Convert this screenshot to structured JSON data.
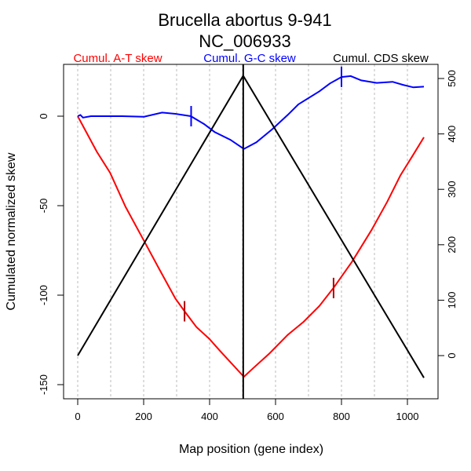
{
  "chart_data": {
    "type": "line",
    "title": "Brucella abortus 9-941",
    "subtitle": "NC_006933",
    "xlabel": "Map position (gene index)",
    "ylabel": "Cumulated normalized skew",
    "xlim": [
      0,
      1050
    ],
    "ylim": [
      -150,
      25
    ],
    "y2lim": [
      -40,
      505
    ],
    "x_ticks": [
      0,
      200,
      400,
      600,
      800,
      1000
    ],
    "y_ticks": [
      -150,
      -100,
      -50,
      0
    ],
    "y2_ticks": [
      0,
      100,
      200,
      300,
      400,
      500
    ],
    "grid": "vertical dashed every 100",
    "divider_x": 502,
    "legend": [
      {
        "label": "Cumul. A-T skew",
        "color": "#ff0000"
      },
      {
        "label": "Cumul. G-C skew",
        "color": "#0000ff"
      },
      {
        "label": "Cumul. CDS skew",
        "color": "#000000"
      }
    ],
    "series": [
      {
        "name": "Cumul. A-T skew",
        "axis": "left",
        "color": "#ff0000",
        "points": [
          [
            0,
            0
          ],
          [
            58,
            -19.9
          ],
          [
            98,
            -31.6
          ],
          [
            145,
            -50.6
          ],
          [
            201,
            -69.6
          ],
          [
            248,
            -85.7
          ],
          [
            296,
            -101.8
          ],
          [
            324,
            -109
          ],
          [
            360,
            -117.8
          ],
          [
            399,
            -124.4
          ],
          [
            431,
            -131
          ],
          [
            504,
            -145.6
          ],
          [
            534,
            -140.5
          ],
          [
            582,
            -132.5
          ],
          [
            637,
            -122.2
          ],
          [
            685,
            -114.9
          ],
          [
            733,
            -106
          ],
          [
            776,
            -95.9
          ],
          [
            832,
            -81.3
          ],
          [
            891,
            -63.7
          ],
          [
            939,
            -47.7
          ],
          [
            979,
            -33
          ],
          [
            1018,
            -21.4
          ],
          [
            1050,
            -11.8
          ]
        ],
        "markers": [
          [
            324,
            -109
          ],
          [
            776,
            -96
          ]
        ],
        "marker_color": "#b00000"
      },
      {
        "name": "Cumul. G-C skew",
        "axis": "left",
        "color": "#0000ff",
        "points": [
          [
            0,
            0
          ],
          [
            8,
            0.7
          ],
          [
            16,
            -0.8
          ],
          [
            40,
            0
          ],
          [
            88,
            0
          ],
          [
            135,
            0
          ],
          [
            201,
            -0.3
          ],
          [
            256,
            2
          ],
          [
            296,
            1.3
          ],
          [
            343,
            0
          ],
          [
            383,
            -4.4
          ],
          [
            415,
            -8.8
          ],
          [
            463,
            -13.2
          ],
          [
            504,
            -18.3
          ],
          [
            542,
            -14.6
          ],
          [
            590,
            -7.3
          ],
          [
            637,
            0.7
          ],
          [
            669,
            6.6
          ],
          [
            733,
            13.9
          ],
          [
            765,
            18.3
          ],
          [
            800,
            21.9
          ],
          [
            828,
            22.4
          ],
          [
            860,
            20
          ],
          [
            907,
            18.6
          ],
          [
            955,
            19.2
          ],
          [
            987,
            17.5
          ],
          [
            1018,
            16.1
          ],
          [
            1050,
            16.5
          ]
        ],
        "markers": [
          [
            344,
            0
          ],
          [
            800,
            22
          ]
        ],
        "marker_color": "#0000ff"
      },
      {
        "name": "Cumul. CDS skew",
        "axis": "right",
        "color": "#000000",
        "points": [
          [
            0,
            0
          ],
          [
            502,
            505
          ],
          [
            1050,
            -40
          ]
        ]
      }
    ]
  }
}
